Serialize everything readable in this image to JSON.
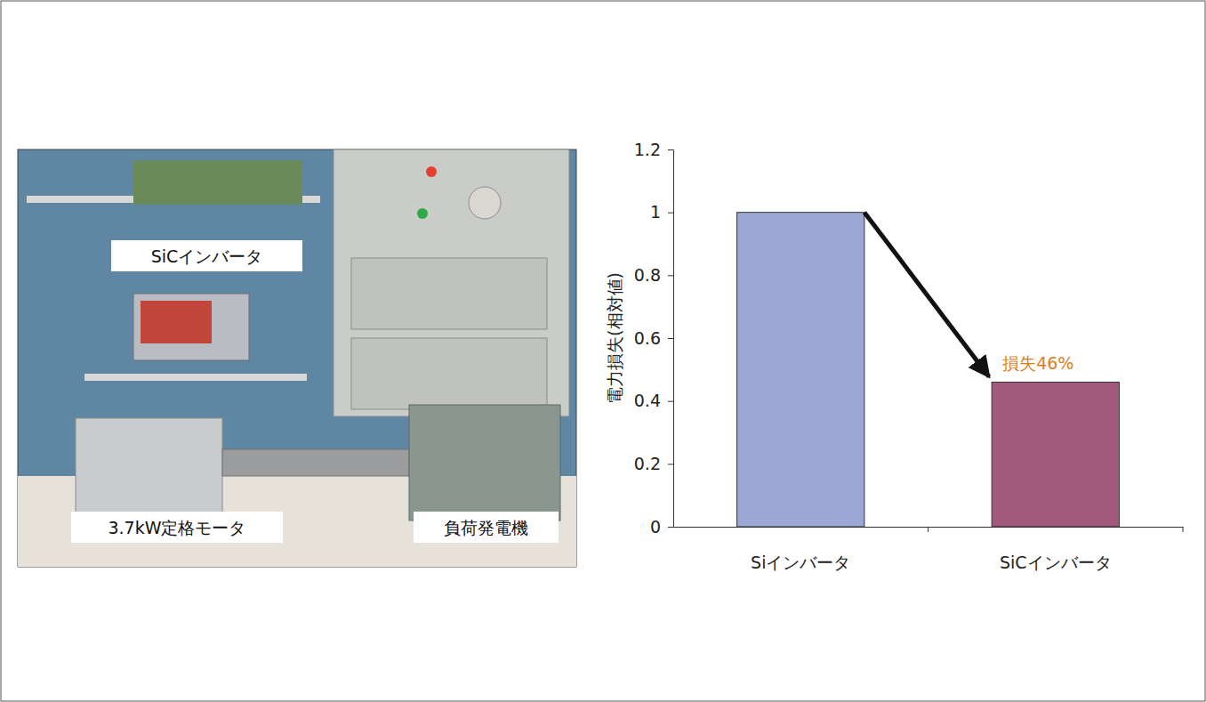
{
  "chart_data": {
    "type": "bar",
    "categories": [
      "Siインバータ",
      "SiCインバータ"
    ],
    "values": [
      1,
      0.46
    ],
    "colors": [
      "#9da7d6",
      "#a3587d"
    ],
    "y_label": "電力損失(相対値)",
    "annotation": "損失46%",
    "ylim": [
      0,
      1.2
    ],
    "yticks": [
      0,
      0.2,
      0.4,
      0.6,
      0.8,
      1,
      1.2
    ],
    "grid": false
  },
  "photo": {
    "labels": [
      "SiCインバータ",
      "3.7kW定格モータ",
      "負荷発電機"
    ]
  }
}
